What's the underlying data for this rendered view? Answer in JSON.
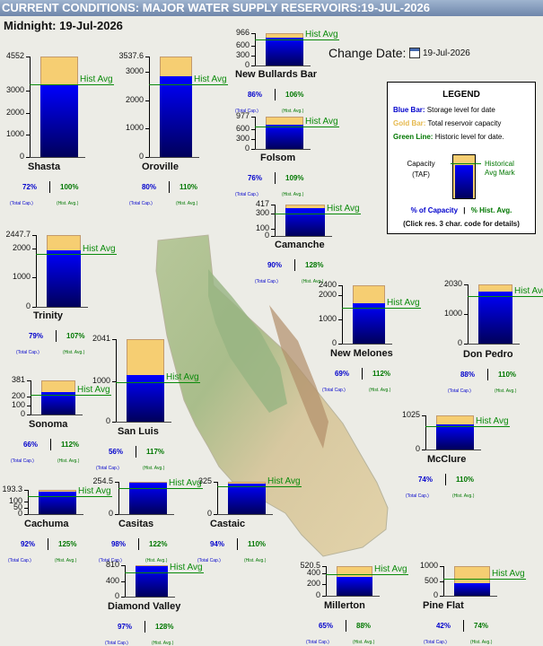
{
  "header": {
    "title": "CURRENT CONDITIONS: MAJOR WATER SUPPLY RESERVOIRS:19-JUL-2026",
    "subtitle": "Midnight: 19-Jul-2026",
    "change_date_label": "Change Date:",
    "change_date_value": "19-Jul-2026"
  },
  "labels": {
    "hist_avg": "Hist Avg",
    "total_cap": "(Total Cap.)",
    "hist_avg_small": "(Hist. Avg.)"
  },
  "legend": {
    "title": "LEGEND",
    "blue_key": "Blue Bar:",
    "blue_desc": "Storage level for date",
    "gold_key": "Gold Bar:",
    "gold_desc": "Total reservoir capacity",
    "green_key": "Green Line:",
    "green_desc": "Historic level for date.",
    "capacity_line1": "Capacity",
    "capacity_line2": "(TAF)",
    "historical_line1": "Historical",
    "historical_line2": "Avg Mark",
    "pct_capacity": "% of Capacity",
    "pct_hist": "% Hist. Avg.",
    "click_note": "(Click res. 3 char. code for details)"
  },
  "colors": {
    "storage": "#0000ff",
    "capacity": "#f6ce72",
    "historic": "#0a8a0a"
  },
  "reservoirs": [
    {
      "name": "Shasta",
      "capacity": 4552,
      "storage": 3277,
      "hist": 3277,
      "pct_cap": "72%",
      "pct_hist": "100%",
      "ticks": [
        "4552",
        "3000",
        "2000",
        "1000",
        "0"
      ]
    },
    {
      "name": "Oroville",
      "capacity": 3537.6,
      "storage": 2830,
      "hist": 2573,
      "pct_cap": "80%",
      "pct_hist": "110%",
      "ticks": [
        "3537.6",
        "3000",
        "2000",
        "1000",
        "0"
      ]
    },
    {
      "name": "New Bullards Bar",
      "capacity": 966,
      "storage": 831,
      "hist": 784,
      "pct_cap": "86%",
      "pct_hist": "106%",
      "ticks": [
        "966",
        "600",
        "300",
        "0"
      ]
    },
    {
      "name": "Folsom",
      "capacity": 977,
      "storage": 743,
      "hist": 681,
      "pct_cap": "76%",
      "pct_hist": "109%",
      "ticks": [
        "977",
        "600",
        "300",
        "0"
      ]
    },
    {
      "name": "Camanche",
      "capacity": 417,
      "storage": 375,
      "hist": 293,
      "pct_cap": "90%",
      "pct_hist": "128%",
      "ticks": [
        "417",
        "300",
        "100",
        "0"
      ]
    },
    {
      "name": "Trinity",
      "capacity": 2447.7,
      "storage": 1934,
      "hist": 1807,
      "pct_cap": "79%",
      "pct_hist": "107%",
      "ticks": [
        "2447.7",
        "2000",
        "1000",
        "0"
      ]
    },
    {
      "name": "New Melones",
      "capacity": 2400,
      "storage": 1656,
      "hist": 1479,
      "pct_cap": "69%",
      "pct_hist": "112%",
      "ticks": [
        "2400",
        "2000",
        "1000",
        "0"
      ]
    },
    {
      "name": "Don Pedro",
      "capacity": 2030,
      "storage": 1786,
      "hist": 1624,
      "pct_cap": "88%",
      "pct_hist": "110%",
      "ticks": [
        "2030",
        "1000",
        "0"
      ]
    },
    {
      "name": "Sonoma",
      "capacity": 381,
      "storage": 251,
      "hist": 224,
      "pct_cap": "66%",
      "pct_hist": "112%",
      "ticks": [
        "381",
        "200",
        "100",
        "0"
      ]
    },
    {
      "name": "San Luis",
      "capacity": 2041,
      "storage": 1143,
      "hist": 977,
      "pct_cap": "56%",
      "pct_hist": "117%",
      "ticks": [
        "2041",
        "1000",
        "0"
      ]
    },
    {
      "name": "McClure",
      "capacity": 1025,
      "storage": 759,
      "hist": 690,
      "pct_cap": "74%",
      "pct_hist": "110%",
      "ticks": [
        "1025",
        "0"
      ]
    },
    {
      "name": "Cachuma",
      "capacity": 193.3,
      "storage": 178,
      "hist": 142,
      "pct_cap": "92%",
      "pct_hist": "125%",
      "ticks": [
        "193.3",
        "100",
        "50",
        "0"
      ]
    },
    {
      "name": "Casitas",
      "capacity": 254.5,
      "storage": 249,
      "hist": 204,
      "pct_cap": "98%",
      "pct_hist": "122%",
      "ticks": [
        "254.5",
        "0"
      ]
    },
    {
      "name": "Castaic",
      "capacity": 325,
      "storage": 306,
      "hist": 278,
      "pct_cap": "94%",
      "pct_hist": "110%",
      "ticks": [
        "325",
        "0"
      ]
    },
    {
      "name": "Diamond Valley",
      "capacity": 810,
      "storage": 786,
      "hist": 614,
      "pct_cap": "97%",
      "pct_hist": "128%",
      "ticks": [
        "810",
        "400",
        "0"
      ]
    },
    {
      "name": "Millerton",
      "capacity": 520.5,
      "storage": 338,
      "hist": 384,
      "pct_cap": "65%",
      "pct_hist": "88%",
      "ticks": [
        "520.5",
        "400",
        "200",
        "0"
      ]
    },
    {
      "name": "Pine Flat",
      "capacity": 1000,
      "storage": 420,
      "hist": 568,
      "pct_cap": "42%",
      "pct_hist": "74%",
      "ticks": [
        "1000",
        "500",
        "0"
      ]
    }
  ]
}
